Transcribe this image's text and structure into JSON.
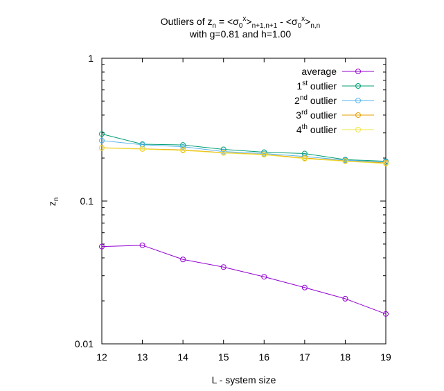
{
  "chart_data": {
    "type": "line",
    "title": {
      "line1": {
        "prefix": "Outliers of z",
        "z_sub": "n",
        "eq": " = <σ",
        "s1_sub": "0",
        "s1_sup": "x",
        "close1": ">",
        "idx1_sub": "n+1,n+1",
        "minus": " - <σ",
        "s2_sub": "0",
        "s2_sup": "x",
        "close2": ">",
        "idx2_sub": "n,n"
      },
      "line2": "with g=0.81 and h=1.00"
    },
    "xlabel": "L - system size",
    "ylabel": {
      "base": "z",
      "sub": "n"
    },
    "x_scale": "linear",
    "y_scale": "log",
    "xlim": [
      12,
      19
    ],
    "ylim": [
      0.01,
      1
    ],
    "x_ticks": [
      "12",
      "13",
      "14",
      "15",
      "16",
      "17",
      "18",
      "19"
    ],
    "y_ticks": [
      {
        "value": 0.01,
        "label": "0.01"
      },
      {
        "value": 0.1,
        "label": "0.1"
      },
      {
        "value": 1,
        "label": "1"
      }
    ],
    "x": [
      12,
      13,
      14,
      15,
      16,
      17,
      18,
      19
    ],
    "legend_position": "top-right",
    "grid": false,
    "series": [
      {
        "key": "average",
        "name": "average",
        "sup": "",
        "suffix": "",
        "color": "#9400d3",
        "values": [
          0.048,
          0.049,
          0.039,
          0.0345,
          0.0295,
          0.0248,
          0.0207,
          0.0162
        ]
      },
      {
        "key": "o1",
        "name": "1",
        "sup": "st",
        "suffix": " outlier",
        "color": "#009e73",
        "values": [
          0.295,
          0.25,
          0.247,
          0.23,
          0.22,
          0.215,
          0.195,
          0.19
        ]
      },
      {
        "key": "o2",
        "name": "2",
        "sup": "nd",
        "suffix": " outlier",
        "color": "#56b4e9",
        "values": [
          0.265,
          0.248,
          0.24,
          0.222,
          0.215,
          0.205,
          0.193,
          0.188
        ]
      },
      {
        "key": "o3",
        "name": "3",
        "sup": "rd",
        "suffix": " outlier",
        "color": "#e69f00",
        "values": [
          0.236,
          0.232,
          0.228,
          0.218,
          0.212,
          0.2,
          0.191,
          0.185
        ]
      },
      {
        "key": "o4",
        "name": "4",
        "sup": "th",
        "suffix": " outlier",
        "color": "#f0e442",
        "values": [
          0.235,
          0.231,
          0.226,
          0.217,
          0.211,
          0.198,
          0.19,
          0.183
        ]
      }
    ]
  }
}
